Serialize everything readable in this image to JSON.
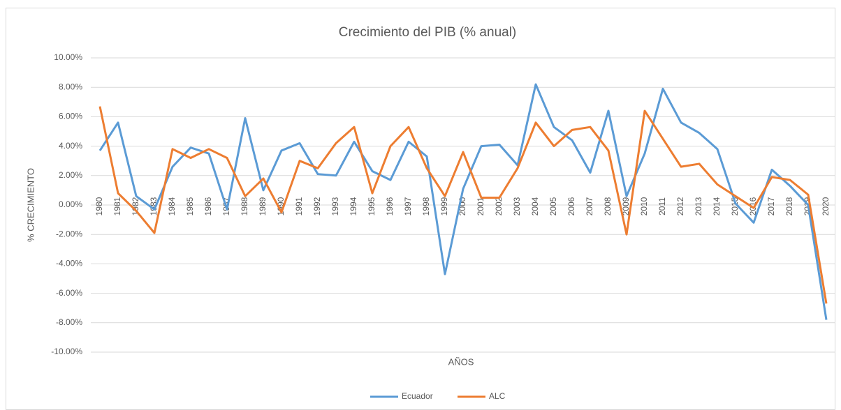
{
  "chart_data": {
    "type": "line",
    "title": "Crecimiento del PIB (% anual)",
    "x_label": "AÑOS",
    "y_label": "% CRECIMIENTO",
    "categories": [
      "1980",
      "1981",
      "1982",
      "1983",
      "1984",
      "1985",
      "1986",
      "1987",
      "1988",
      "1989",
      "1990",
      "1991",
      "1992",
      "1993",
      "1994",
      "1995",
      "1996",
      "1997",
      "1998",
      "1999",
      "2000",
      "2001",
      "2002",
      "2003",
      "2004",
      "2005",
      "2006",
      "2007",
      "2008",
      "2009",
      "2010",
      "2011",
      "2012",
      "2013",
      "2014",
      "2015",
      "2016",
      "2017",
      "2018",
      "2019",
      "2020"
    ],
    "series": [
      {
        "name": "Ecuador",
        "color": "#5b9bd5",
        "values": [
          3.7,
          5.6,
          0.6,
          -0.3,
          2.6,
          3.9,
          3.5,
          -0.3,
          5.9,
          1.0,
          3.7,
          4.2,
          2.1,
          2.0,
          4.3,
          2.3,
          1.7,
          4.3,
          3.3,
          -4.7,
          1.1,
          4.0,
          4.1,
          2.7,
          8.2,
          5.3,
          4.4,
          2.2,
          6.4,
          0.6,
          3.5,
          7.9,
          5.6,
          4.9,
          3.8,
          0.1,
          -1.2,
          2.4,
          1.3,
          0.0,
          -7.8
        ]
      },
      {
        "name": "ALC",
        "color": "#ed7d31",
        "values": [
          6.7,
          0.8,
          -0.4,
          -1.9,
          3.8,
          3.2,
          3.8,
          3.2,
          0.6,
          1.8,
          -0.5,
          3.0,
          2.5,
          4.2,
          5.3,
          0.8,
          4.0,
          5.3,
          2.5,
          0.6,
          3.6,
          0.5,
          0.5,
          2.5,
          5.6,
          4.0,
          5.1,
          5.3,
          3.7,
          -2.0,
          6.4,
          4.5,
          2.6,
          2.8,
          1.4,
          0.6,
          -0.2,
          1.9,
          1.7,
          0.7,
          -6.7
        ]
      }
    ],
    "ylim": [
      -10,
      10
    ],
    "yticks": [
      {
        "value": -10,
        "label": "-10.00%"
      },
      {
        "value": -8,
        "label": "-8.00%"
      },
      {
        "value": -6,
        "label": "-6.00%"
      },
      {
        "value": -4,
        "label": "-4.00%"
      },
      {
        "value": -2,
        "label": "-2.00%"
      },
      {
        "value": 0,
        "label": "0.00%"
      },
      {
        "value": 2,
        "label": "2.00%"
      },
      {
        "value": 4,
        "label": "4.00%"
      },
      {
        "value": 6,
        "label": "6.00%"
      },
      {
        "value": 8,
        "label": "8.00%"
      },
      {
        "value": 10,
        "label": "10.00%"
      }
    ],
    "grid": true,
    "legend": "bottom"
  }
}
